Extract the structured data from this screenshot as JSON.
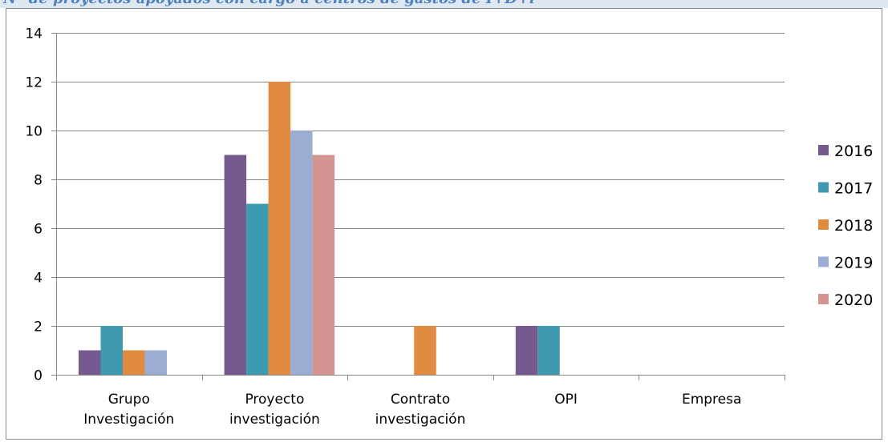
{
  "caption_partial": "Nº de proyectos apoyados con cargo a centros de gastos de I+D+i",
  "chart_data": {
    "type": "bar",
    "categories": [
      [
        "Grupo",
        "Investigación"
      ],
      [
        "Proyecto",
        "investigación"
      ],
      [
        "Contrato",
        "investigación"
      ],
      [
        "OPI"
      ],
      [
        "Empresa"
      ]
    ],
    "series": [
      {
        "name": "2016",
        "color": "#75598f",
        "values": [
          1,
          9,
          0,
          2,
          0
        ]
      },
      {
        "name": "2017",
        "color": "#3d9ab0",
        "values": [
          2,
          7,
          0,
          2,
          0
        ]
      },
      {
        "name": "2018",
        "color": "#e08a42",
        "values": [
          1,
          12,
          2,
          0,
          0
        ]
      },
      {
        "name": "2019",
        "color": "#9badd3",
        "values": [
          1,
          10,
          0,
          0,
          0
        ]
      },
      {
        "name": "2020",
        "color": "#d49590",
        "values": [
          0,
          9,
          0,
          0,
          0
        ]
      }
    ],
    "yticks": [
      "0",
      "2",
      "4",
      "6",
      "8",
      "10",
      "12",
      "14"
    ],
    "ylim": [
      0,
      14
    ],
    "grid": true,
    "legend_position": "right",
    "title": "",
    "xlabel": "",
    "ylabel": ""
  }
}
